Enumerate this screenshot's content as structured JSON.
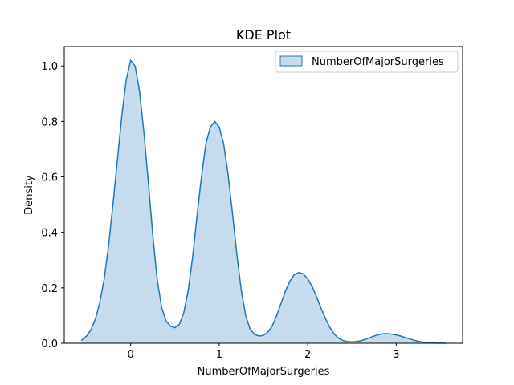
{
  "chart_data": {
    "type": "area",
    "title": "KDE Plot",
    "xlabel": "NumberOfMajorSurgeries",
    "ylabel": "Density",
    "xlim": [
      -0.75,
      3.75
    ],
    "ylim": [
      0,
      1.07
    ],
    "xticks": [
      0,
      1,
      2,
      3
    ],
    "yticks": [
      0.0,
      0.2,
      0.4,
      0.6,
      0.8,
      1.0
    ],
    "ytick_labels": [
      "0.0",
      "0.2",
      "0.4",
      "0.6",
      "0.8",
      "1.0"
    ],
    "legend_position": "top-right",
    "grid": false,
    "series": [
      {
        "name": "NumberOfMajorSurgeries",
        "color": "#1f77b4",
        "fill_color": "#c6dbee",
        "x": [
          -0.56,
          -0.5,
          -0.45,
          -0.4,
          -0.35,
          -0.3,
          -0.25,
          -0.2,
          -0.15,
          -0.1,
          -0.05,
          0.0,
          0.05,
          0.1,
          0.15,
          0.2,
          0.25,
          0.3,
          0.35,
          0.4,
          0.45,
          0.5,
          0.55,
          0.6,
          0.65,
          0.7,
          0.75,
          0.8,
          0.85,
          0.9,
          0.95,
          1.0,
          1.05,
          1.1,
          1.15,
          1.2,
          1.25,
          1.3,
          1.35,
          1.4,
          1.45,
          1.5,
          1.55,
          1.6,
          1.65,
          1.7,
          1.75,
          1.8,
          1.85,
          1.9,
          1.95,
          2.0,
          2.05,
          2.1,
          2.15,
          2.2,
          2.25,
          2.3,
          2.35,
          2.4,
          2.45,
          2.5,
          2.55,
          2.6,
          2.65,
          2.7,
          2.75,
          2.8,
          2.85,
          2.9,
          2.95,
          3.0,
          3.05,
          3.1,
          3.15,
          3.2,
          3.25,
          3.3,
          3.35,
          3.4,
          3.45,
          3.5,
          3.56
        ],
        "y": [
          0.01,
          0.025,
          0.048,
          0.085,
          0.145,
          0.23,
          0.35,
          0.5,
          0.66,
          0.82,
          0.95,
          1.02,
          1.0,
          0.91,
          0.76,
          0.58,
          0.39,
          0.23,
          0.13,
          0.08,
          0.062,
          0.056,
          0.068,
          0.11,
          0.19,
          0.31,
          0.46,
          0.6,
          0.72,
          0.78,
          0.8,
          0.78,
          0.72,
          0.61,
          0.47,
          0.32,
          0.19,
          0.1,
          0.05,
          0.032,
          0.026,
          0.028,
          0.04,
          0.063,
          0.1,
          0.145,
          0.19,
          0.225,
          0.248,
          0.255,
          0.25,
          0.233,
          0.205,
          0.168,
          0.127,
          0.09,
          0.057,
          0.033,
          0.018,
          0.01,
          0.006,
          0.005,
          0.006,
          0.009,
          0.014,
          0.02,
          0.026,
          0.031,
          0.034,
          0.035,
          0.033,
          0.03,
          0.026,
          0.021,
          0.016,
          0.011,
          0.007,
          0.004,
          0.002,
          0.001,
          0.0005,
          0.0002,
          0.0
        ]
      }
    ]
  }
}
